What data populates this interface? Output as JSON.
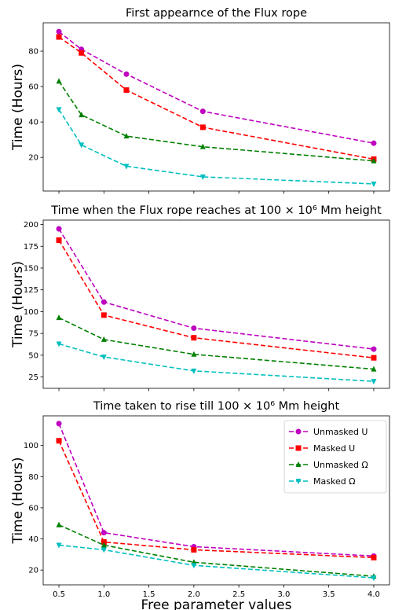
{
  "chart_data": [
    {
      "type": "line",
      "title": "First appearnce of the Flux rope",
      "xlabel": "",
      "ylabel": "Time (Hours)",
      "x_ticks": [],
      "y_ticks": [
        20,
        40,
        60,
        80
      ],
      "xlim": [
        0.325,
        4.175
      ],
      "ylim": [
        1,
        96
      ],
      "series": [
        {
          "color": "#bf00bf",
          "marker": "circle",
          "x": [
            0.5,
            0.75,
            1.25,
            2.1,
            4.0
          ],
          "values": [
            91,
            81,
            67,
            46,
            28
          ]
        },
        {
          "color": "#ff0000",
          "marker": "square",
          "x": [
            0.5,
            0.75,
            1.25,
            2.1,
            4.0
          ],
          "values": [
            88,
            79,
            58,
            37,
            19
          ]
        },
        {
          "color": "#008000",
          "marker": "triangle-up",
          "x": [
            0.5,
            0.75,
            1.25,
            2.1,
            4.0
          ],
          "values": [
            63,
            44,
            32,
            26,
            18
          ]
        },
        {
          "color": "#00bfbf",
          "marker": "triangle-down",
          "x": [
            0.5,
            0.75,
            1.25,
            2.1,
            4.0
          ],
          "values": [
            47,
            27,
            15,
            9,
            5
          ]
        }
      ]
    },
    {
      "type": "line",
      "title": "Time when the Flux rope reaches at 100 × 10⁶ Mm height",
      "xlabel": "",
      "ylabel": "Time (Hours)",
      "x_ticks": [],
      "y_ticks": [
        25,
        50,
        75,
        100,
        125,
        150,
        175,
        200
      ],
      "xlim": [
        0.325,
        4.175
      ],
      "ylim": [
        12,
        205
      ],
      "series": [
        {
          "color": "#bf00bf",
          "marker": "circle",
          "x": [
            0.5,
            1.0,
            2.0,
            4.0
          ],
          "values": [
            195,
            111,
            81,
            57
          ]
        },
        {
          "color": "#ff0000",
          "marker": "square",
          "x": [
            0.5,
            1.0,
            2.0,
            4.0
          ],
          "values": [
            182,
            96,
            70,
            47
          ]
        },
        {
          "color": "#008000",
          "marker": "triangle-up",
          "x": [
            0.5,
            1.0,
            2.0,
            4.0
          ],
          "values": [
            93,
            68,
            51,
            34
          ]
        },
        {
          "color": "#00bfbf",
          "marker": "triangle-down",
          "x": [
            0.5,
            1.0,
            2.0,
            4.0
          ],
          "values": [
            63,
            48,
            32,
            20
          ]
        }
      ]
    },
    {
      "type": "line",
      "title": "Time taken to rise till 100 × 10⁶ Mm height",
      "xlabel": "Free parameter values",
      "ylabel": "Time (Hours)",
      "x_ticks": [
        "0.5",
        "1.0",
        "1.5",
        "2.0",
        "2.5",
        "3.0",
        "3.5",
        "4.0"
      ],
      "x_tick_values": [
        0.5,
        1.0,
        1.5,
        2.0,
        2.5,
        3.0,
        3.5,
        4.0
      ],
      "y_ticks": [
        20,
        40,
        60,
        80,
        100
      ],
      "xlim": [
        0.325,
        4.175
      ],
      "ylim": [
        10.5,
        119
      ],
      "legend": {
        "position": "top-right",
        "entries": [
          "Unmasked U",
          "Masked U",
          "Unmasked Ω",
          "Masked Ω"
        ]
      },
      "series": [
        {
          "name": "Unmasked U",
          "color": "#bf00bf",
          "marker": "circle",
          "x": [
            0.5,
            1.0,
            2.0,
            4.0
          ],
          "values": [
            114,
            44,
            35,
            29
          ]
        },
        {
          "name": "Masked U",
          "color": "#ff0000",
          "marker": "square",
          "x": [
            0.5,
            1.0,
            2.0,
            4.0
          ],
          "values": [
            103,
            38,
            33,
            28
          ]
        },
        {
          "name": "Unmasked Ω",
          "color": "#008000",
          "marker": "triangle-up",
          "x": [
            0.5,
            1.0,
            2.0,
            4.0
          ],
          "values": [
            49,
            36,
            25,
            16
          ]
        },
        {
          "name": "Masked Ω",
          "color": "#00bfbf",
          "marker": "triangle-down",
          "x": [
            0.5,
            1.0,
            2.0,
            4.0
          ],
          "values": [
            36,
            33,
            23,
            15
          ]
        }
      ]
    }
  ]
}
